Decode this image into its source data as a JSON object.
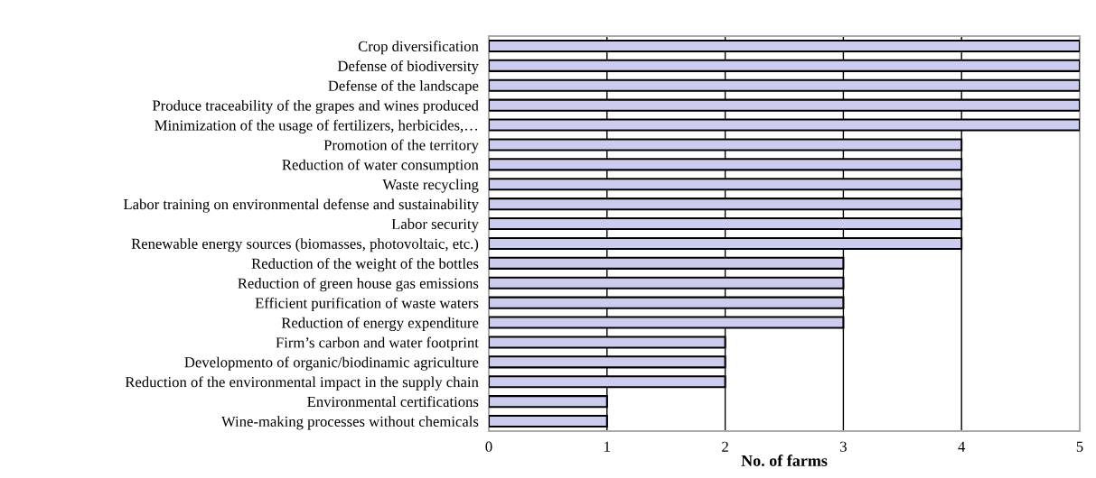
{
  "chart_data": {
    "type": "bar",
    "orientation": "horizontal",
    "xlabel": "No. of farms",
    "categories": [
      "Crop diversification",
      "Defense of biodiversity",
      "Defense of the landscape",
      "Produce traceability of the grapes and wines produced",
      "Minimization of the usage of fertilizers, herbicides,…",
      "Promotion of the territory",
      "Reduction of water consumption",
      "Waste recycling",
      "Labor training on environmental defense and sustainability",
      "Labor security",
      "Renewable energy sources (biomasses, photovoltaic, etc.)",
      "Reduction of the weight of the bottles",
      "Reduction of green house gas emissions",
      "Efficient purification of waste waters",
      "Reduction of energy expenditure",
      "Firm’s carbon and water footprint",
      "Developmento of organic/biodinamic agriculture",
      "Reduction of the environmental impact in the supply chain",
      "Environmental certifications",
      "Wine-making processes without chemicals"
    ],
    "values": [
      5,
      5,
      5,
      5,
      5,
      4,
      4,
      4,
      4,
      4,
      4,
      3,
      3,
      3,
      3,
      2,
      2,
      2,
      1,
      1
    ],
    "color": "#ccccee",
    "xlim": [
      0,
      5
    ],
    "xticks": [
      0,
      1,
      2,
      3,
      4,
      5
    ],
    "grid": "x"
  }
}
